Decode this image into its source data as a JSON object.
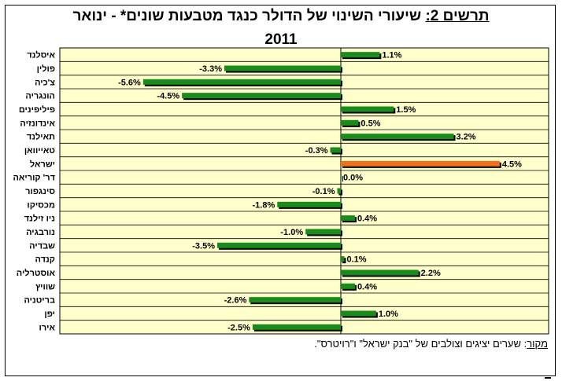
{
  "title": {
    "label": "תרשים 2:",
    "text": " שיעורי השינוי של הדולר כנגד מטבעות שונים* - ינואר",
    "year": "2011"
  },
  "source": {
    "label": "מקור",
    "text": ": שערים יציגים וצולבים של \"בנק ישראל\" ו\"רויטרס\"."
  },
  "colors": {
    "plot_bg": "#FFFFCC",
    "bar": "#1A8A1A",
    "bar_highlight": "#F07020",
    "bar_shadow": "#000000"
  },
  "chart_data": {
    "type": "bar",
    "orientation": "horizontal",
    "categories": [
      "איסלנד",
      "פולין",
      "צ'כיה",
      "הונגריה",
      "פיליפינים",
      "אינדונזיה",
      "תאילנד",
      "טאייוואן",
      "ישראל",
      "דר' קוריאה",
      "סינגפור",
      "מכסיקו",
      "ניו זילנד",
      "נורבגיה",
      "שבדיה",
      "קנדה",
      "אוסטרליה",
      "שוויץ",
      "בריטניה",
      "יפן",
      "אירו"
    ],
    "values": [
      1.1,
      -3.3,
      -5.6,
      -4.5,
      1.5,
      0.5,
      3.2,
      -0.3,
      4.5,
      0.0,
      -0.1,
      -1.8,
      0.4,
      -1.0,
      -3.5,
      0.1,
      2.2,
      0.4,
      -2.6,
      1.0,
      -2.5
    ],
    "labels": [
      "1.1%",
      "-3.3%",
      "-5.6%",
      "-4.5%",
      "1.5%",
      "0.5%",
      "3.2%",
      "-0.3%",
      "4.5%",
      "0.0%",
      "-0.1%",
      "-1.8%",
      "0.4%",
      "-1.0%",
      "-3.5%",
      "0.1%",
      "2.2%",
      "0.4%",
      "-2.6%",
      "1.0%",
      "-2.5%"
    ],
    "highlight": "ישראל",
    "xlim": [
      -5.6,
      4.5
    ],
    "grid": true,
    "legend": "none"
  }
}
